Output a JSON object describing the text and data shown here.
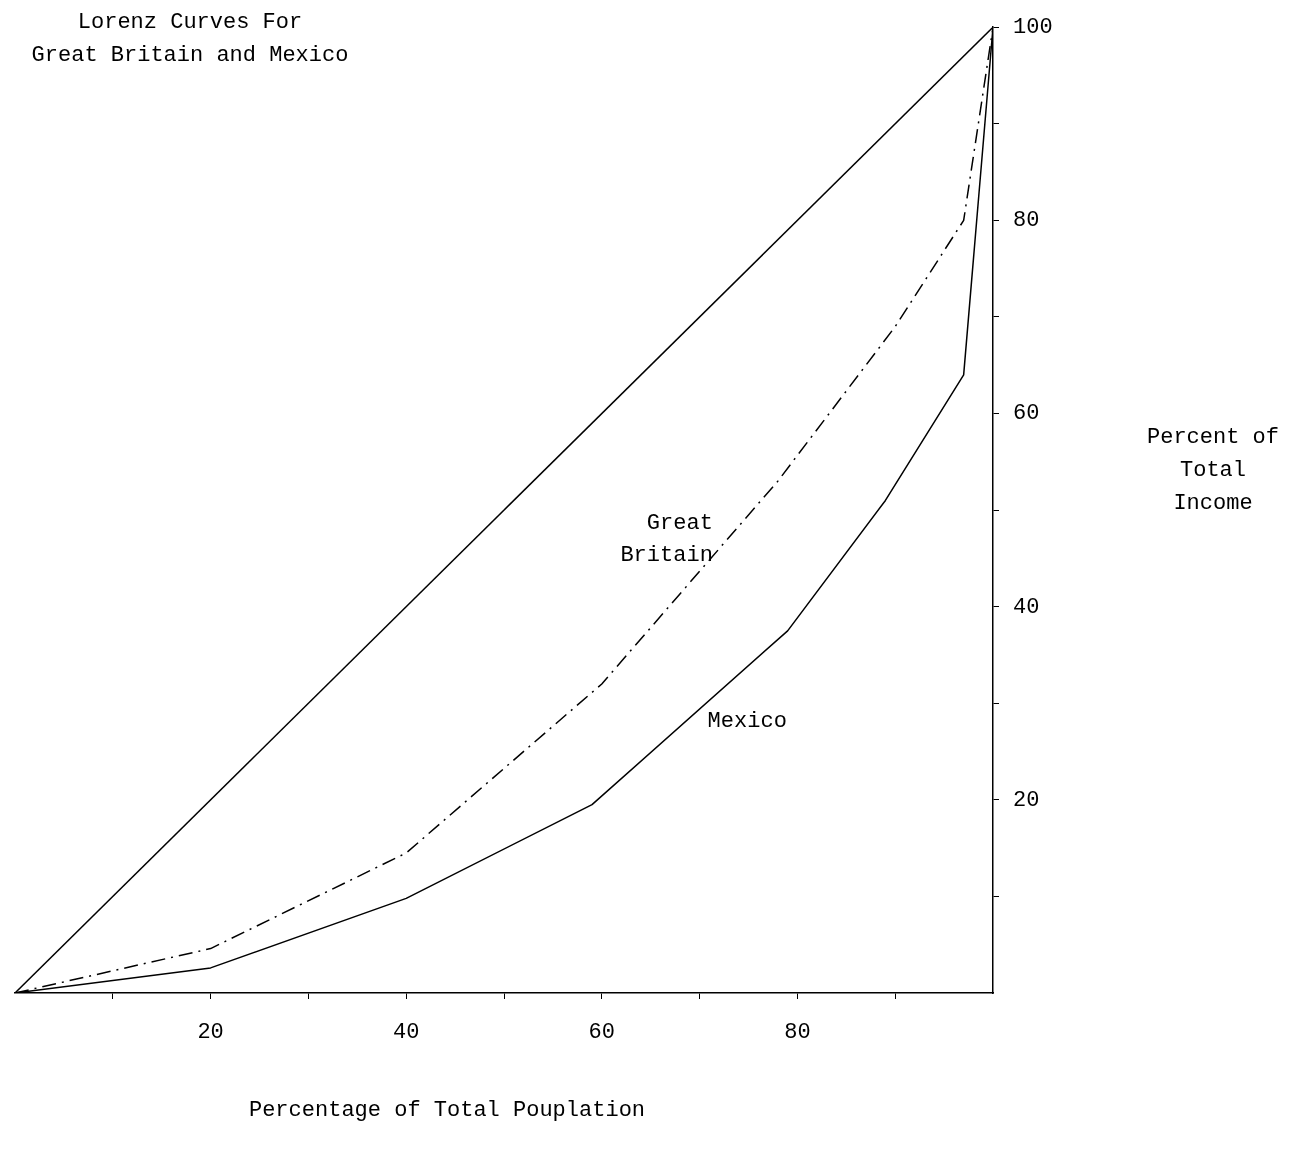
{
  "chart_data": {
    "type": "line",
    "title": "Lorenz Curves For\nGreat Britain and Mexico",
    "xlabel": "Percentage of Total Pouplation",
    "ylabel": "Percent of\nTotal\nIncome",
    "xlim": [
      0,
      100
    ],
    "ylim": [
      0,
      100
    ],
    "xticks": [
      {
        "value": 10,
        "label": null
      },
      20,
      {
        "value": 30,
        "label": null
      },
      40,
      {
        "value": 50,
        "label": null
      },
      60,
      {
        "value": 70,
        "label": null
      },
      80,
      {
        "value": 90,
        "label": null
      }
    ],
    "yticks": [
      {
        "value": 10,
        "label": null
      },
      20,
      {
        "value": 30,
        "label": null
      },
      40,
      {
        "value": 50,
        "label": null
      },
      60,
      {
        "value": 70,
        "label": null
      },
      80,
      {
        "value": 90,
        "label": null
      },
      100
    ],
    "grid": false,
    "legend": false,
    "marker": "none",
    "series": [
      {
        "color": "#000000",
        "line_style": "solid",
        "x": [
          0,
          100
        ],
        "values": [
          0,
          100
        ]
      },
      {
        "name": "Great Britain",
        "color": "#000000",
        "line_style": "dashed",
        "x": [
          0,
          20,
          40,
          60,
          78,
          90,
          97,
          100
        ],
        "values": [
          0,
          4.6,
          14.5,
          32,
          53,
          69,
          80,
          100
        ]
      },
      {
        "name": "Mexico",
        "color": "#000000",
        "line_style": "solid",
        "x": [
          0,
          20,
          40,
          59,
          79,
          89,
          97,
          100
        ],
        "values": [
          0,
          2.6,
          9.8,
          19.5,
          37.5,
          51,
          64,
          100
        ]
      }
    ]
  }
}
